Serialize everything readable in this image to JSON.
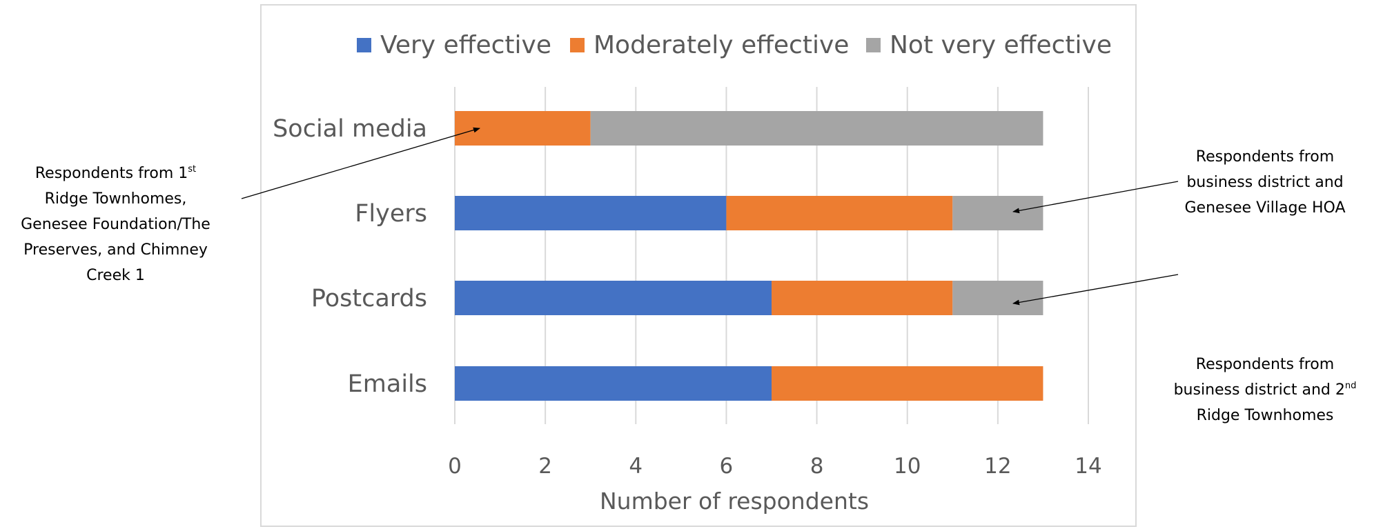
{
  "chart_data": {
    "type": "bar",
    "orientation": "horizontal",
    "stacked": true,
    "categories": [
      "Social media",
      "Flyers",
      "Postcards",
      "Emails"
    ],
    "series": [
      {
        "name": "Very effective",
        "values": [
          0,
          6,
          7,
          7
        ],
        "color": "#4472C4"
      },
      {
        "name": "Moderately effective",
        "values": [
          3,
          5,
          4,
          6
        ],
        "color": "#ED7D31"
      },
      {
        "name": "Not very effective",
        "values": [
          10,
          2,
          2,
          0
        ],
        "color": "#A5A5A5"
      }
    ],
    "xlabel": "Number of respondents",
    "ylabel": "",
    "xlim": [
      0,
      14
    ],
    "xticks": [
      "0",
      "2",
      "4",
      "6",
      "8",
      "10",
      "12",
      "14"
    ],
    "grid": "vertical",
    "legend_position": "top"
  },
  "annotations": [
    {
      "lines": [
        [
          "Respondents from 1",
          "st",
          ""
        ],
        [
          "Ridge Townhomes,",
          "",
          ""
        ],
        [
          "Genesee Foundation/The",
          "",
          ""
        ],
        [
          "Preserves, and Chimney",
          "",
          ""
        ],
        [
          "Creek 1",
          "",
          ""
        ]
      ]
    },
    {
      "lines": [
        [
          "Respondents from",
          "",
          ""
        ],
        [
          "business district and",
          "",
          ""
        ],
        [
          "Genesee Village HOA",
          "",
          ""
        ]
      ]
    },
    {
      "lines": [
        [
          "Respondents from",
          "",
          ""
        ],
        [
          "business district and 2",
          "nd",
          ""
        ],
        [
          "Ridge Townhomes",
          "",
          ""
        ]
      ]
    }
  ]
}
